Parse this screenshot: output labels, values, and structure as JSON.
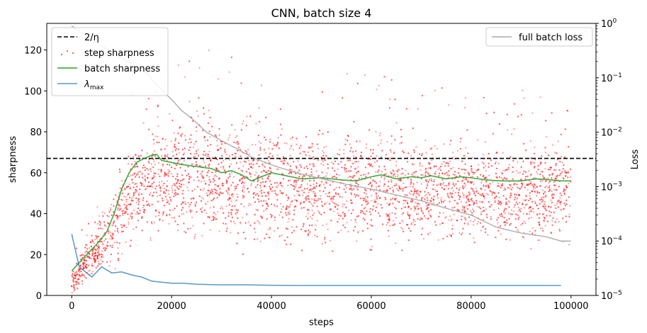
{
  "chart_data": {
    "type": "scatter",
    "title": "CNN, batch size 4",
    "xlabel": "steps",
    "ylabel": "sharpness",
    "y2label": "Loss",
    "xlim": [
      -5000,
      105000
    ],
    "ylim": [
      0,
      133
    ],
    "y2lim": [
      1e-05,
      1
    ],
    "y2scale": "log",
    "x_ticks": [
      0,
      20000,
      40000,
      60000,
      80000,
      100000
    ],
    "x_tick_labels": [
      "0",
      "20000",
      "40000",
      "60000",
      "80000",
      "100000"
    ],
    "y_ticks": [
      0,
      20,
      40,
      60,
      80,
      100,
      120
    ],
    "y_tick_labels": [
      "0",
      "20",
      "40",
      "60",
      "80",
      "100",
      "120"
    ],
    "y2_ticks": [
      1e-05,
      0.0001,
      0.001,
      0.01,
      0.1,
      1
    ],
    "y2_tick_labels": [
      {
        "base": "10",
        "exp": "−5"
      },
      {
        "base": "10",
        "exp": "−4"
      },
      {
        "base": "10",
        "exp": "−3"
      },
      {
        "base": "10",
        "exp": "−2"
      },
      {
        "base": "10",
        "exp": "−1"
      },
      {
        "base": "10",
        "exp": "0"
      }
    ],
    "legend_left": {
      "placement": "upper-left",
      "entries": [
        {
          "label": "2/η",
          "style": "dashed",
          "color": "#000000"
        },
        {
          "label": "step sharpness",
          "style": "dots",
          "color": "#ff0000"
        },
        {
          "label": "batch sharpness",
          "style": "line",
          "color": "#2ca02c"
        },
        {
          "label": "λ",
          "sub": "max",
          "style": "line",
          "color": "#1f77b4"
        }
      ]
    },
    "legend_right": {
      "placement": "upper-right",
      "entries": [
        {
          "label": "full batch loss",
          "style": "line",
          "color": "#aaaaaa"
        }
      ]
    },
    "series": [
      {
        "name": "2/η",
        "kind": "hline",
        "y": 67,
        "color": "#000000"
      },
      {
        "name": "step sharpness",
        "kind": "scatter-band",
        "color": "#ff0000",
        "n_points": 5200,
        "x_range": [
          0,
          100000
        ],
        "band": {
          "x": [
            0,
            2000,
            5000,
            8000,
            11000,
            14000,
            20000,
            30000,
            40000,
            50000,
            60000,
            70000,
            80000,
            90000,
            100000
          ],
          "center": [
            6,
            14,
            22,
            32,
            45,
            55,
            58,
            57,
            55,
            53,
            52,
            51,
            50,
            50,
            50
          ],
          "spread": [
            5,
            9,
            12,
            17,
            22,
            26,
            28,
            28,
            27,
            26,
            25,
            24,
            23,
            23,
            22
          ]
        }
      },
      {
        "name": "batch sharpness",
        "kind": "line",
        "color": "#2ca02c",
        "x": [
          0,
          1500,
          3000,
          5000,
          7000,
          8500,
          10000,
          11500,
          13000,
          14500,
          16000,
          17000,
          18000,
          20000,
          22000,
          25000,
          28000,
          30000,
          32000,
          34000,
          36000,
          38000,
          40000,
          43000,
          46000,
          50000,
          54000,
          57000,
          60000,
          62000,
          65000,
          68000,
          70000,
          72000,
          75000,
          78000,
          80000,
          83000,
          86000,
          90000,
          93000,
          96000,
          98000,
          100000
        ],
        "y": [
          12,
          16,
          20,
          25,
          31,
          40,
          52,
          60,
          65,
          67,
          68.5,
          69,
          66,
          65,
          64,
          63,
          62,
          60,
          61,
          59,
          56,
          58,
          60,
          58.5,
          57,
          57.5,
          56.5,
          56,
          58,
          59,
          57,
          58,
          57.5,
          58.5,
          57,
          58,
          57.5,
          56.5,
          56,
          56,
          57,
          56.5,
          56,
          56
        ]
      },
      {
        "name": "λmax",
        "kind": "line",
        "color": "#1f77b4",
        "x": [
          0,
          1500,
          4000,
          6000,
          8000,
          10000,
          12000,
          14000,
          16000,
          18000,
          20000,
          22000,
          25000,
          28000,
          30000,
          35000,
          40000,
          45000,
          50000,
          60000,
          70000,
          80000,
          90000,
          98000
        ],
        "y": [
          30,
          14,
          9,
          14,
          11,
          11.5,
          10,
          9,
          7,
          6.5,
          6,
          6,
          5.5,
          5.3,
          5.2,
          5.2,
          5,
          4.9,
          4.9,
          4.9,
          4.9,
          4.9,
          4.9,
          4.9
        ]
      },
      {
        "name": "full batch loss",
        "kind": "line",
        "axis": "right",
        "color": "#aaaaaa",
        "x": [
          0,
          4000,
          8000,
          12000,
          15000,
          18000,
          20000,
          22000,
          24000,
          27000,
          30000,
          33000,
          36000,
          40000,
          45000,
          50000,
          55000,
          60000,
          65000,
          70000,
          75000,
          80000,
          85000,
          90000,
          95000,
          98000,
          100000
        ],
        "y": [
          0.9,
          0.5,
          0.3,
          0.18,
          0.12,
          0.06,
          0.04,
          0.025,
          0.018,
          0.01,
          0.007,
          0.005,
          0.0035,
          0.0025,
          0.0018,
          0.0014,
          0.0011,
          0.0009,
          0.0007,
          0.00055,
          0.0004,
          0.0003,
          0.00018,
          0.00014,
          0.00012,
          0.0001,
          0.0001
        ]
      }
    ]
  }
}
